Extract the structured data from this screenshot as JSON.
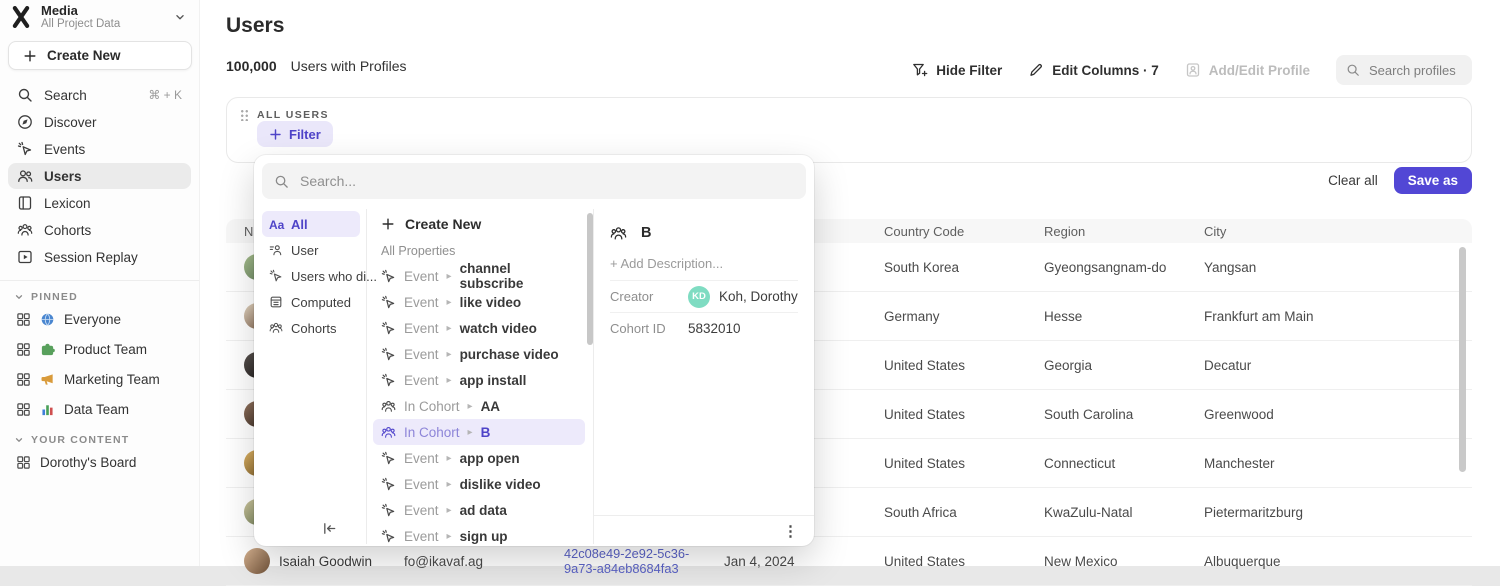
{
  "sidebar": {
    "workspace": {
      "name": "Media",
      "project": "All Project Data"
    },
    "create_new_label": "Create New",
    "nav": [
      {
        "label": "Search",
        "icon": "search",
        "shortcut": "⌘ + K"
      },
      {
        "label": "Discover",
        "icon": "discover"
      },
      {
        "label": "Events",
        "icon": "events"
      },
      {
        "label": "Users",
        "icon": "users",
        "active": true
      },
      {
        "label": "Lexicon",
        "icon": "lexicon"
      },
      {
        "label": "Cohorts",
        "icon": "cohorts"
      },
      {
        "label": "Session Replay",
        "icon": "session-replay"
      }
    ],
    "pinned_label": "PINNED",
    "pinned": [
      {
        "label": "Everyone",
        "emoji_icon": "globe"
      },
      {
        "label": "Product Team",
        "emoji_icon": "puzzle"
      },
      {
        "label": "Marketing Team",
        "emoji_icon": "megaphone"
      },
      {
        "label": "Data Team",
        "emoji_icon": "chart"
      }
    ],
    "your_content_label": "YOUR CONTENT",
    "your_content": [
      {
        "label": "Dorothy's Board"
      }
    ]
  },
  "header": {
    "title": "Users",
    "count": "100,000",
    "count_label": "Users with Profiles",
    "hide_filter_label": "Hide Filter",
    "edit_columns_label": "Edit Columns · 7",
    "add_edit_profile_label": "Add/Edit Profile",
    "search_placeholder": "Search profiles"
  },
  "filter_bar": {
    "group_label": "ALL USERS",
    "filter_button_label": "Filter",
    "clear_all_label": "Clear all",
    "save_as_label": "Save as"
  },
  "dropdown": {
    "search_placeholder": "Search...",
    "categories": [
      {
        "label": "All",
        "icon": "aa",
        "active": true
      },
      {
        "label": "User",
        "icon": "user-cat"
      },
      {
        "label": "Users who di...",
        "icon": "events"
      },
      {
        "label": "Computed",
        "icon": "computed"
      },
      {
        "label": "Cohorts",
        "icon": "cohorts"
      }
    ],
    "create_new_label": "Create New",
    "section_label": "All Properties",
    "items": [
      {
        "prefix": "Event",
        "name": "channel subscribe",
        "icon": "events"
      },
      {
        "prefix": "Event",
        "name": "like video",
        "icon": "events"
      },
      {
        "prefix": "Event",
        "name": "watch video",
        "icon": "events"
      },
      {
        "prefix": "Event",
        "name": "purchase video",
        "icon": "events"
      },
      {
        "prefix": "Event",
        "name": "app install",
        "icon": "events"
      },
      {
        "prefix": "In Cohort",
        "name": "AA",
        "icon": "cohorts"
      },
      {
        "prefix": "In Cohort",
        "name": "B",
        "icon": "cohorts",
        "selected": true
      },
      {
        "prefix": "Event",
        "name": "app open",
        "icon": "events"
      },
      {
        "prefix": "Event",
        "name": "dislike video",
        "icon": "events"
      },
      {
        "prefix": "Event",
        "name": "ad data",
        "icon": "events"
      },
      {
        "prefix": "Event",
        "name": "sign up",
        "icon": "events"
      }
    ],
    "detail": {
      "title": "B",
      "add_description_label": "+ Add Description...",
      "creator_label": "Creator",
      "creator_initials": "KD",
      "creator_name": "Koh, Dorothy",
      "cohort_id_label": "Cohort ID",
      "cohort_id": "5832010"
    }
  },
  "table": {
    "columns": [
      "Name",
      "",
      "",
      "",
      "Country Code",
      "Region",
      "City"
    ],
    "rows": [
      {
        "name": "",
        "email": "",
        "id": "",
        "date": "",
        "country": "South Korea",
        "region": "Gyeongsangnam-do",
        "city": "Yangsan",
        "avatar": [
          "#a8bf8e",
          "#5e7a5a"
        ]
      },
      {
        "name": "",
        "email": "",
        "id": "",
        "date": "",
        "country": "Germany",
        "region": "Hesse",
        "city": "Frankfurt am Main",
        "avatar": [
          "#e6d9c5",
          "#6e4f3a"
        ]
      },
      {
        "name": "",
        "email": "",
        "id": "",
        "date": "",
        "country": "United States",
        "region": "Georgia",
        "city": "Decatur",
        "avatar": [
          "#5a5350",
          "#191716"
        ]
      },
      {
        "name": "",
        "email": "",
        "id": "",
        "date": "",
        "country": "United States",
        "region": "South Carolina",
        "city": "Greenwood",
        "avatar": [
          "#96755f",
          "#2b211c"
        ]
      },
      {
        "name": "",
        "email": "",
        "id": "",
        "date": "",
        "country": "United States",
        "region": "Connecticut",
        "city": "Manchester",
        "avatar": [
          "#e0b565",
          "#6e5122"
        ]
      },
      {
        "name": "",
        "email": "",
        "id": "",
        "date": "",
        "country": "South Africa",
        "region": "KwaZulu-Natal",
        "city": "Pietermaritzburg",
        "avatar": [
          "#cfc79f",
          "#64744e"
        ]
      },
      {
        "name": "Isaiah Goodwin",
        "email": "fo@ikavaf.ag",
        "id": "42c08e49-2e92-5c36-9a73-a84eb8684fa3",
        "date": "Jan 4, 2024",
        "country": "United States",
        "region": "New Mexico",
        "city": "Albuquerque",
        "avatar": [
          "#d8b492",
          "#6f5138"
        ]
      }
    ]
  },
  "colors": {
    "accent": "#5247d5",
    "accent_text": "#4f44c8",
    "accent_light_bg": "#edeafb",
    "link_blue": "#5b63c7",
    "creator_avatar": "#7fdcc2",
    "table_header_bg": "#f7f7f7"
  }
}
